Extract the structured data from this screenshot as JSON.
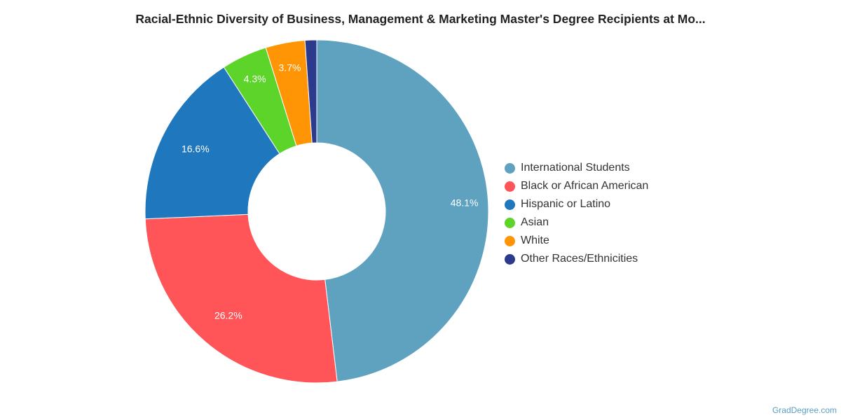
{
  "chart_data": {
    "type": "pie",
    "variant": "donut",
    "title": "Racial-Ethnic Diversity of Business, Management & Marketing Master's Degree Recipients at Mo...",
    "series": [
      {
        "name": "International Students",
        "value": 48.1,
        "label": "48.1%",
        "color": "#5ea2c0"
      },
      {
        "name": "Black or African American",
        "value": 26.2,
        "label": "26.2%",
        "color": "#ff5458"
      },
      {
        "name": "Hispanic or Latino",
        "value": 16.6,
        "label": "16.6%",
        "color": "#1f77bd"
      },
      {
        "name": "Asian",
        "value": 4.3,
        "label": "4.3%",
        "color": "#5dd42a"
      },
      {
        "name": "White",
        "value": 3.7,
        "label": "3.7%",
        "color": "#ff9505"
      },
      {
        "name": "Other Races/Ethnicities",
        "value": 1.1,
        "label": "",
        "color": "#2c3a8e"
      }
    ],
    "legend_position": "right"
  },
  "credit": "GradDegree.com"
}
